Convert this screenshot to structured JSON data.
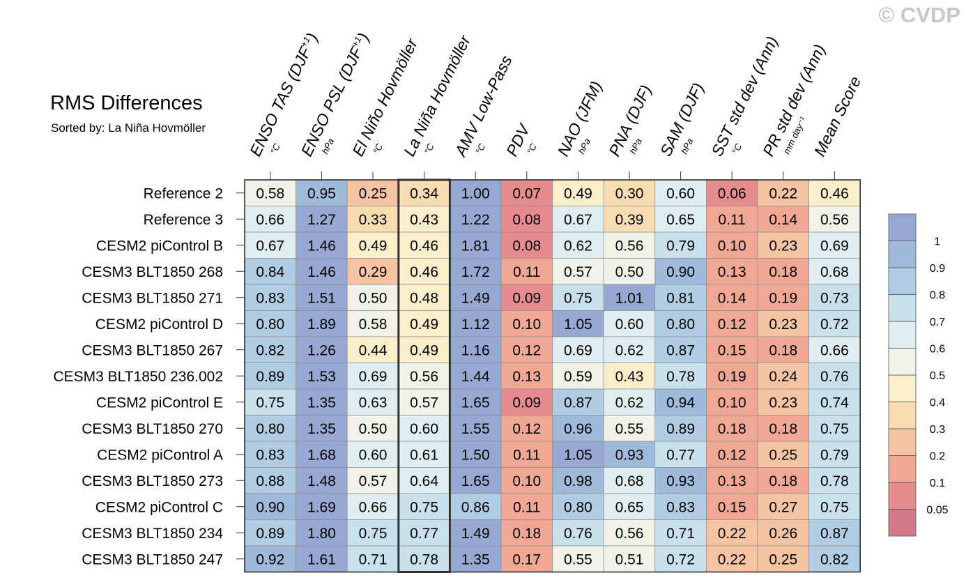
{
  "watermark": "© CVDP",
  "chart_data": {
    "type": "heatmap",
    "title": "RMS Differences",
    "subtitle": "Sorted by: La Niña Hovmöller",
    "highlight_column": 3,
    "columns": [
      {
        "label": "ENSO TAS (DJF",
        "sup": "+1",
        "tail": ")",
        "unit": "°C"
      },
      {
        "label": "ENSO PSL (DJF",
        "sup": "+1",
        "tail": ")",
        "unit": "hPa"
      },
      {
        "label": "El Niño Hovmöller",
        "sup": "",
        "tail": "",
        "unit": "°C"
      },
      {
        "label": "La Niña Hovmöller",
        "sup": "",
        "tail": "",
        "unit": "°C"
      },
      {
        "label": "AMV Low-Pass",
        "sup": "",
        "tail": "",
        "unit": "°C"
      },
      {
        "label": "PDV",
        "sup": "",
        "tail": "",
        "unit": "°C"
      },
      {
        "label": "NAO (JFM)",
        "sup": "",
        "tail": "",
        "unit": "hPa"
      },
      {
        "label": "PNA (DJF)",
        "sup": "",
        "tail": "",
        "unit": "hPa"
      },
      {
        "label": "SAM (DJF)",
        "sup": "",
        "tail": "",
        "unit": "hPa"
      },
      {
        "label": "SST std dev (Ann)",
        "sup": "",
        "tail": "",
        "unit": "°C"
      },
      {
        "label": "PR std dev (Ann)",
        "sup": "",
        "tail": "",
        "unit": "mm day⁻¹"
      },
      {
        "label": "Mean Score",
        "sup": "",
        "tail": "",
        "unit": ""
      }
    ],
    "rows": [
      {
        "name": "Reference 2",
        "values": [
          0.58,
          0.95,
          0.25,
          0.34,
          1.0,
          0.07,
          0.49,
          0.3,
          0.6,
          0.06,
          0.22,
          0.46
        ]
      },
      {
        "name": "Reference 3",
        "values": [
          0.66,
          1.27,
          0.33,
          0.43,
          1.22,
          0.08,
          0.67,
          0.39,
          0.65,
          0.11,
          0.14,
          0.56
        ]
      },
      {
        "name": "CESM2 piControl B",
        "values": [
          0.67,
          1.46,
          0.49,
          0.46,
          1.81,
          0.08,
          0.62,
          0.56,
          0.79,
          0.1,
          0.23,
          0.69
        ]
      },
      {
        "name": "CESM3 BLT1850 268",
        "values": [
          0.84,
          1.46,
          0.29,
          0.46,
          1.72,
          0.11,
          0.57,
          0.5,
          0.9,
          0.13,
          0.18,
          0.68
        ]
      },
      {
        "name": "CESM3 BLT1850 271",
        "values": [
          0.83,
          1.51,
          0.5,
          0.48,
          1.49,
          0.09,
          0.75,
          1.01,
          0.81,
          0.14,
          0.19,
          0.73
        ]
      },
      {
        "name": "CESM2 piControl D",
        "values": [
          0.8,
          1.89,
          0.58,
          0.49,
          1.12,
          0.1,
          1.05,
          0.6,
          0.8,
          0.12,
          0.23,
          0.72
        ]
      },
      {
        "name": "CESM3 BLT1850 267",
        "values": [
          0.82,
          1.26,
          0.44,
          0.49,
          1.16,
          0.12,
          0.69,
          0.62,
          0.87,
          0.15,
          0.18,
          0.66
        ]
      },
      {
        "name": "CESM3 BLT1850 236.002",
        "values": [
          0.89,
          1.53,
          0.69,
          0.56,
          1.44,
          0.13,
          0.59,
          0.43,
          0.78,
          0.19,
          0.24,
          0.76
        ]
      },
      {
        "name": "CESM2 piControl E",
        "values": [
          0.75,
          1.35,
          0.63,
          0.57,
          1.65,
          0.09,
          0.87,
          0.62,
          0.94,
          0.1,
          0.23,
          0.74
        ]
      },
      {
        "name": "CESM3 BLT1850 270",
        "values": [
          0.8,
          1.35,
          0.5,
          0.6,
          1.55,
          0.12,
          0.96,
          0.55,
          0.89,
          0.18,
          0.18,
          0.75
        ]
      },
      {
        "name": "CESM2 piControl A",
        "values": [
          0.83,
          1.68,
          0.6,
          0.61,
          1.5,
          0.11,
          1.05,
          0.93,
          0.77,
          0.12,
          0.25,
          0.79
        ]
      },
      {
        "name": "CESM3 BLT1850 273",
        "values": [
          0.88,
          1.48,
          0.57,
          0.64,
          1.65,
          0.1,
          0.98,
          0.68,
          0.93,
          0.13,
          0.18,
          0.78
        ]
      },
      {
        "name": "CESM2 piControl C",
        "values": [
          0.9,
          1.69,
          0.66,
          0.75,
          0.86,
          0.11,
          0.8,
          0.65,
          0.83,
          0.15,
          0.27,
          0.75
        ]
      },
      {
        "name": "CESM3 BLT1850 234",
        "values": [
          0.89,
          1.8,
          0.75,
          0.77,
          1.49,
          0.18,
          0.76,
          0.56,
          0.71,
          0.22,
          0.26,
          0.87
        ]
      },
      {
        "name": "CESM3 BLT1850 247",
        "values": [
          0.92,
          1.61,
          0.71,
          0.78,
          1.35,
          0.17,
          0.55,
          0.51,
          0.72,
          0.22,
          0.25,
          0.82
        ]
      }
    ],
    "colorbar": {
      "levels": [
        0.05,
        0.1,
        0.2,
        0.3,
        0.4,
        0.5,
        0.6,
        0.7,
        0.8,
        0.9,
        1
      ],
      "tick_labels": [
        "0.05",
        "0.1",
        "0.2",
        "0.3",
        "0.4",
        "0.5",
        "0.6",
        "0.7",
        "0.8",
        "0.9",
        "1"
      ],
      "colors": [
        "#d27a8c",
        "#e68c8e",
        "#f0a895",
        "#f6c4a2",
        "#fadcb3",
        "#fbeecb",
        "#f2f2e8",
        "#e0eef2",
        "#c8e1ec",
        "#b0cde3",
        "#9fbadb",
        "#97a8d2"
      ]
    }
  }
}
